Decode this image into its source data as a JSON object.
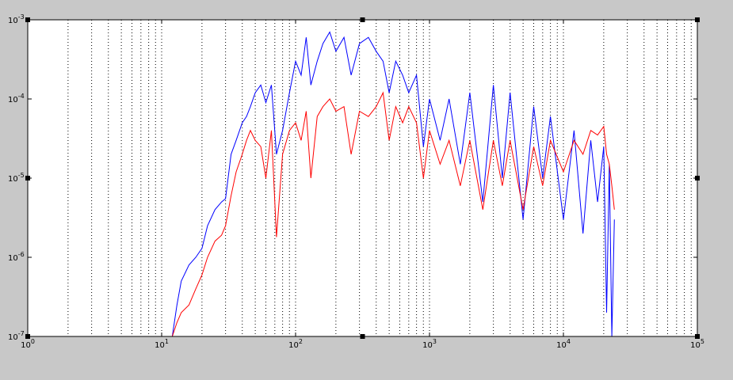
{
  "figure": {
    "background": "#c8c8c8",
    "axes_background": "#ffffff"
  },
  "chart_data": {
    "type": "line",
    "title": "",
    "xlabel": "",
    "ylabel": "",
    "xscale": "log",
    "yscale": "log",
    "xlim": [
      1,
      100000
    ],
    "ylim": [
      1e-07,
      0.001
    ],
    "grid": {
      "x_major": true,
      "x_minor": true,
      "y": false,
      "style": "dotted"
    },
    "legend": null,
    "x_ticks": [
      {
        "base": "10",
        "exp": "0"
      },
      {
        "base": "10",
        "exp": "1"
      },
      {
        "base": "10",
        "exp": "2"
      },
      {
        "base": "10",
        "exp": "3"
      },
      {
        "base": "10",
        "exp": "4"
      },
      {
        "base": "10",
        "exp": "5"
      }
    ],
    "y_ticks": [
      {
        "base": "10",
        "exp": "-7"
      },
      {
        "base": "10",
        "exp": "-6"
      },
      {
        "base": "10",
        "exp": "-5"
      },
      {
        "base": "10",
        "exp": "-4"
      },
      {
        "base": "10",
        "exp": "-3"
      }
    ],
    "series": [
      {
        "color": "#0000ff",
        "x": [
          12,
          13,
          14,
          16,
          18,
          20,
          22,
          25,
          28,
          30,
          33,
          36,
          40,
          43,
          46,
          50,
          55,
          60,
          66,
          72,
          80,
          90,
          100,
          110,
          120,
          130,
          145,
          160,
          180,
          200,
          230,
          260,
          300,
          350,
          400,
          450,
          500,
          560,
          630,
          700,
          800,
          900,
          1000,
          1200,
          1400,
          1700,
          2000,
          2500,
          3000,
          3500,
          4000,
          5000,
          6000,
          7000,
          8000,
          10000,
          12000,
          14000,
          16000,
          18000,
          20000,
          21000,
          22000,
          23000,
          24000
        ],
        "y": [
          1e-07,
          2.5e-07,
          5e-07,
          8e-07,
          1e-06,
          1.3e-06,
          2.5e-06,
          4e-06,
          5e-06,
          5.5e-06,
          2e-05,
          3e-05,
          5e-05,
          6e-05,
          8e-05,
          0.00012,
          0.00015,
          9e-05,
          0.00015,
          2e-05,
          4e-05,
          0.00012,
          0.0003,
          0.0002,
          0.0006,
          0.00015,
          0.0003,
          0.0005,
          0.0007,
          0.0004,
          0.0006,
          0.0002,
          0.0005,
          0.0006,
          0.0004,
          0.0003,
          0.00012,
          0.0003,
          0.0002,
          0.00012,
          0.0002,
          2.5e-05,
          0.0001,
          3e-05,
          0.0001,
          1.5e-05,
          0.00012,
          5e-06,
          0.00015,
          1e-05,
          0.00012,
          3e-06,
          8e-05,
          1e-05,
          6e-05,
          3e-06,
          4e-05,
          2e-06,
          3e-05,
          5e-06,
          2.5e-05,
          2e-07,
          1.5e-05,
          1e-07,
          3e-06
        ]
      },
      {
        "color": "#ff0000",
        "x": [
          12,
          13,
          14,
          16,
          18,
          20,
          22,
          25,
          28,
          30,
          33,
          36,
          40,
          43,
          46,
          50,
          55,
          60,
          66,
          72,
          80,
          90,
          100,
          110,
          120,
          130,
          145,
          160,
          180,
          200,
          230,
          260,
          300,
          350,
          400,
          450,
          500,
          560,
          630,
          700,
          800,
          900,
          1000,
          1200,
          1400,
          1700,
          2000,
          2500,
          3000,
          3500,
          4000,
          5000,
          6000,
          7000,
          8000,
          10000,
          12000,
          14000,
          16000,
          18000,
          20000,
          21000,
          22000,
          23000,
          24000
        ],
        "y": [
          1e-07,
          1.5e-07,
          2e-07,
          2.5e-07,
          4e-07,
          6e-07,
          1e-06,
          1.6e-06,
          1.9e-06,
          2.5e-06,
          6e-06,
          1.2e-05,
          2e-05,
          3e-05,
          4e-05,
          3e-05,
          2.5e-05,
          1e-05,
          4e-05,
          1.8e-06,
          2e-05,
          4e-05,
          5e-05,
          3e-05,
          7e-05,
          1e-05,
          6e-05,
          8e-05,
          0.0001,
          7e-05,
          8e-05,
          2e-05,
          7e-05,
          6e-05,
          8e-05,
          0.00012,
          3e-05,
          8e-05,
          5e-05,
          8e-05,
          5e-05,
          1e-05,
          4e-05,
          1.5e-05,
          3e-05,
          8e-06,
          3e-05,
          4e-06,
          3e-05,
          8e-06,
          3e-05,
          4e-06,
          2.5e-05,
          8e-06,
          3e-05,
          1.2e-05,
          3e-05,
          2e-05,
          4e-05,
          3.5e-05,
          4.5e-05,
          2e-05,
          1.5e-05,
          8e-06,
          4e-06
        ]
      }
    ]
  }
}
